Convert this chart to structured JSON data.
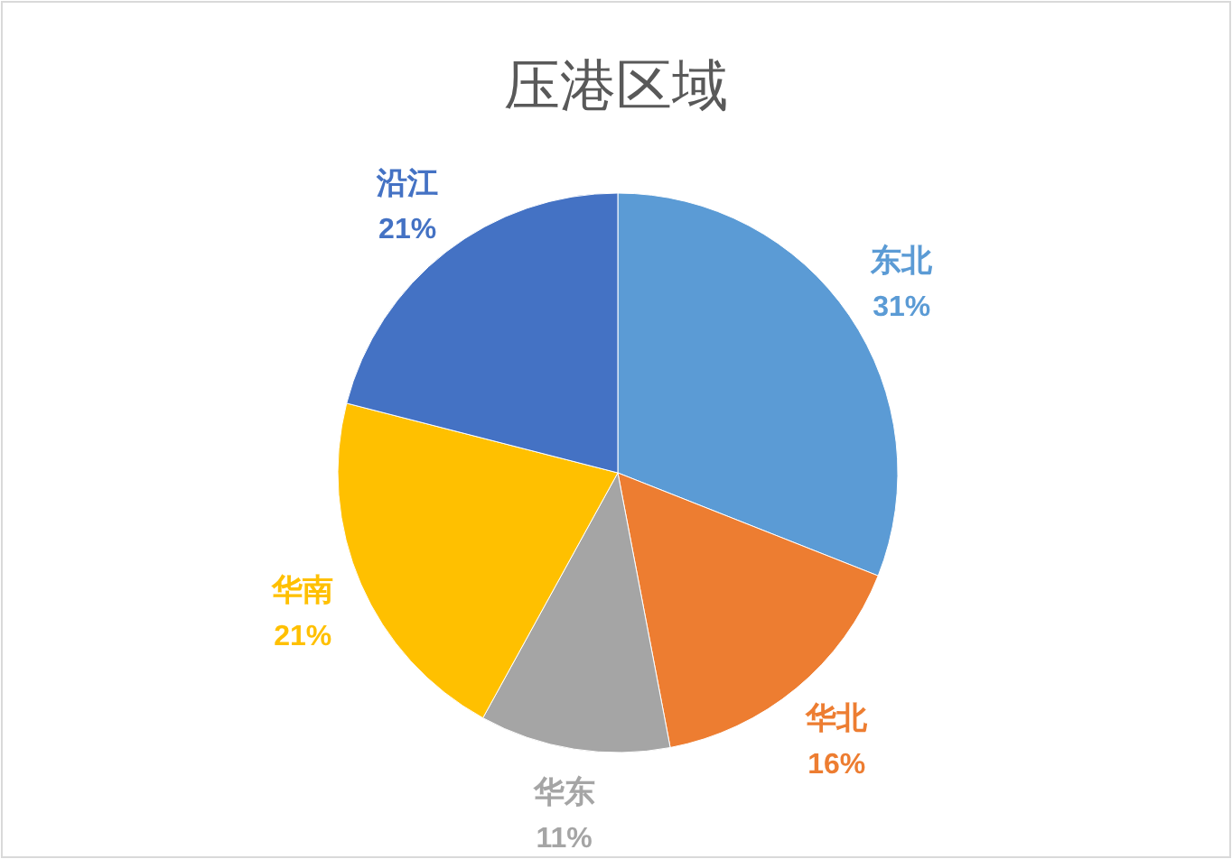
{
  "chart_data": {
    "type": "pie",
    "title": "压港区域",
    "categories": [
      "东北",
      "华北",
      "华东",
      "华南",
      "沿江"
    ],
    "values": [
      31,
      16,
      11,
      21,
      21
    ],
    "value_labels": [
      "31%",
      "16%",
      "11%",
      "21%",
      "21%"
    ],
    "colors": [
      "#5b9bd5",
      "#ed7d31",
      "#a5a5a5",
      "#ffc000",
      "#4472c4"
    ],
    "legend": false
  }
}
